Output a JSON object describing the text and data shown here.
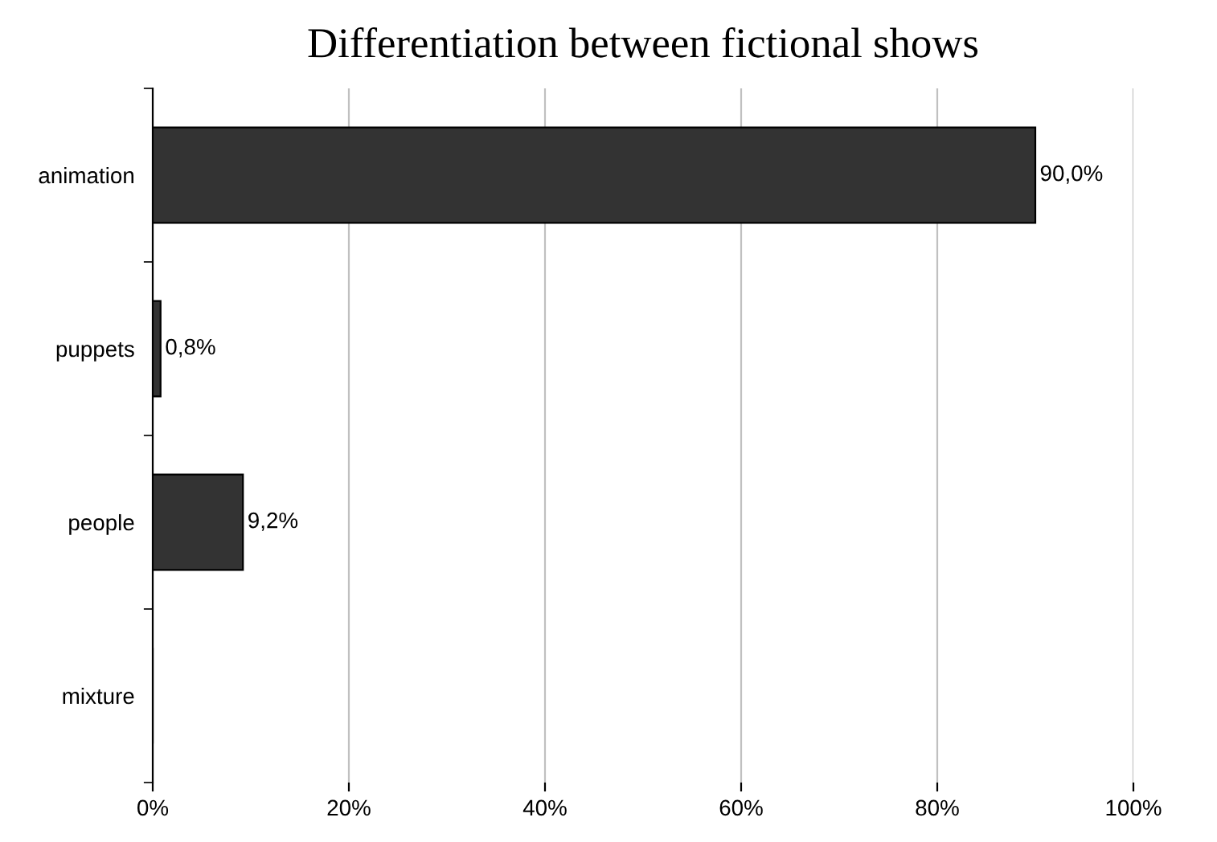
{
  "chart_data": {
    "type": "bar",
    "orientation": "horizontal",
    "title": "Differentiation between fictional shows",
    "categories": [
      "animation",
      "puppets",
      "people",
      "mixture"
    ],
    "values": [
      90.0,
      0.8,
      9.2,
      0
    ],
    "value_labels": [
      "90,0%",
      "0,8%",
      "9,2%",
      null
    ],
    "color": "#333333",
    "xlim": [
      0,
      100
    ],
    "xticks": [
      {
        "value": 0,
        "label": "0%"
      },
      {
        "value": 20,
        "label": "20%"
      },
      {
        "value": 40,
        "label": "40%"
      },
      {
        "value": 60,
        "label": "60%"
      },
      {
        "value": 80,
        "label": "80%"
      },
      {
        "value": 100,
        "label": "100%"
      }
    ],
    "grid": "x",
    "legend": false
  }
}
